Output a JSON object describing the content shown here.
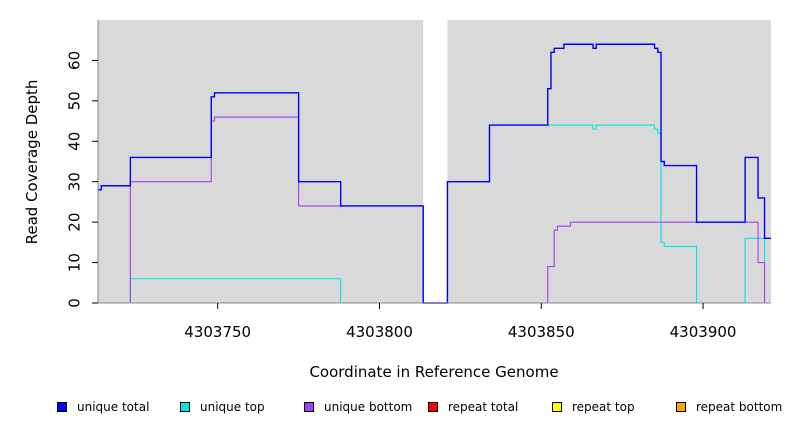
{
  "chart_data": {
    "type": "line",
    "title": "",
    "xlabel": "Coordinate in Reference Genome",
    "ylabel": "Read Coverage Depth",
    "xlim": [
      4303713,
      4303921
    ],
    "ylim": [
      0,
      70
    ],
    "xticks": [
      4303750,
      4303800,
      4303850,
      4303900
    ],
    "xtick_labels": [
      "4303750",
      "4303800",
      "4303850",
      "4303900"
    ],
    "yticks": [
      0,
      10,
      20,
      30,
      40,
      50,
      60
    ],
    "ytick_labels": [
      "0",
      "10",
      "20",
      "30",
      "40",
      "50",
      "60"
    ],
    "grid": false,
    "background": "#d9d9d9",
    "gaps": [
      [
        4303813.5,
        4303821
      ]
    ],
    "legend_position": "bottom",
    "series": [
      {
        "name": "unique total",
        "color": "#0000ff",
        "x": [
          4303713,
          4303714,
          4303714,
          4303718,
          4303718,
          4303723,
          4303723,
          4303748,
          4303748,
          4303749,
          4303749,
          4303775,
          4303775,
          4303788,
          4303788,
          4303813.5,
          4303813.5,
          4303821,
          4303821,
          4303834,
          4303834,
          4303852,
          4303852,
          4303853,
          4303853,
          4303854,
          4303854,
          4303857,
          4303857,
          4303866,
          4303866,
          4303867,
          4303867,
          4303885,
          4303885,
          4303886,
          4303886,
          4303887,
          4303887,
          4303888,
          4303888,
          4303898,
          4303898,
          4303913,
          4303913,
          4303917,
          4303917,
          4303919,
          4303919,
          4303921
        ],
        "y": [
          28,
          28,
          29,
          29,
          29,
          29,
          36,
          36,
          51,
          51,
          52,
          52,
          30,
          30,
          24,
          24,
          0,
          0,
          30,
          30,
          44,
          44,
          53,
          53,
          62,
          62,
          63,
          63,
          64,
          64,
          63,
          63,
          64,
          64,
          63,
          63,
          62,
          62,
          35,
          35,
          34,
          34,
          20,
          20,
          36,
          36,
          26,
          26,
          16,
          16
        ]
      },
      {
        "name": "unique top",
        "color": "#00e5e5",
        "x": [
          4303713,
          4303723,
          4303723,
          4303788,
          4303788,
          4303813.5,
          4303813.5,
          4303821,
          4303821,
          4303834,
          4303834,
          4303866,
          4303866,
          4303867,
          4303867,
          4303885,
          4303885,
          4303886,
          4303886,
          4303887,
          4303887,
          4303888,
          4303888,
          4303898,
          4303898,
          4303913,
          4303913,
          4303916,
          4303916,
          4303919,
          4303919,
          4303921
        ],
        "y": [
          0,
          0,
          6,
          6,
          0,
          0,
          0,
          0,
          30,
          30,
          44,
          44,
          43,
          43,
          44,
          44,
          43,
          43,
          42,
          42,
          15,
          15,
          14,
          14,
          0,
          0,
          16,
          16,
          16,
          16,
          0,
          0
        ]
      },
      {
        "name": "unique bottom",
        "color": "#a040f0",
        "x": [
          4303713,
          4303723,
          4303723,
          4303748,
          4303748,
          4303749,
          4303749,
          4303775,
          4303775,
          4303788,
          4303788,
          4303813.5,
          4303813.5,
          4303821,
          4303821,
          4303852,
          4303852,
          4303854,
          4303854,
          4303855,
          4303855,
          4303859,
          4303859,
          4303917,
          4303917,
          4303919,
          4303919,
          4303921
        ],
        "y": [
          0,
          0,
          30,
          30,
          45,
          45,
          46,
          46,
          24,
          24,
          24,
          24,
          0,
          0,
          0,
          0,
          9,
          9,
          18,
          18,
          19,
          19,
          20,
          20,
          10,
          10,
          0,
          0
        ]
      },
      {
        "name": "repeat total",
        "color": "#ff0000",
        "x": [
          4303713,
          4303921
        ],
        "y": [
          0,
          0
        ]
      },
      {
        "name": "repeat top",
        "color": "#ffff00",
        "x": [
          4303713,
          4303921
        ],
        "y": [
          0,
          0
        ]
      },
      {
        "name": "repeat bottom",
        "color": "#ffa500",
        "x": [
          4303713,
          4303921
        ],
        "y": [
          0,
          0
        ]
      }
    ]
  }
}
